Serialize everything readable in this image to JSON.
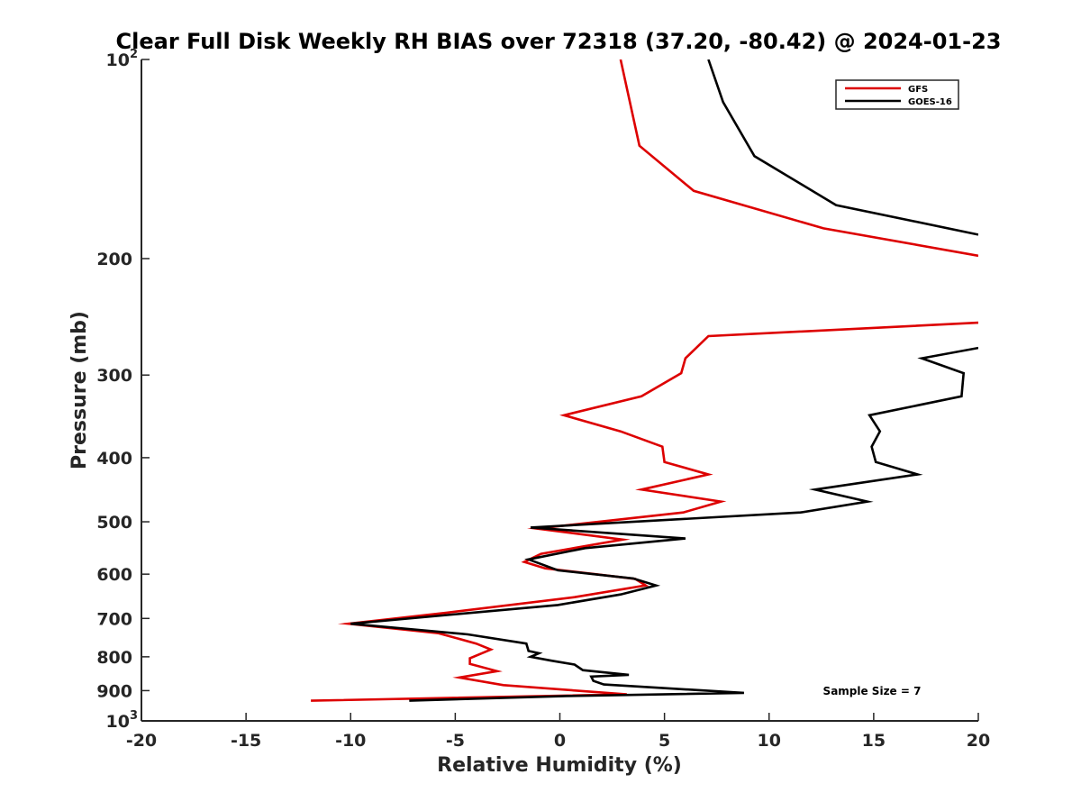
{
  "chart_data": {
    "type": "line",
    "title": "Clear Full Disk Weekly RH BIAS over 72318 (37.20, -80.42) @ 2024-01-23",
    "xlabel": "Relative Humidity (%)",
    "ylabel": "Pressure (mb)",
    "xlim": [
      -20,
      20
    ],
    "ylim": [
      100,
      1000
    ],
    "yscale": "log",
    "y_reversed": true,
    "xticks": [
      "-20",
      "-15",
      "-10",
      "-5",
      "0",
      "5",
      "10",
      "15",
      "20"
    ],
    "yticks": [
      {
        "value": 100,
        "label": "10",
        "sup": "2"
      },
      {
        "value": 200,
        "label": "200"
      },
      {
        "value": 300,
        "label": "300"
      },
      {
        "value": 400,
        "label": "400"
      },
      {
        "value": 500,
        "label": "500"
      },
      {
        "value": 600,
        "label": "600"
      },
      {
        "value": 700,
        "label": "700"
      },
      {
        "value": 800,
        "label": "800"
      },
      {
        "value": 900,
        "label": "900"
      },
      {
        "value": 1000,
        "label": "10",
        "sup": "3"
      }
    ],
    "grid": false,
    "legend_position": "top-right",
    "annotation": "Sample Size = 7",
    "series": [
      {
        "name": "GFS",
        "color": "#dd0000",
        "segments": [
          [
            [
              2.9,
              100
            ],
            [
              3.8,
              135
            ],
            [
              6.4,
              158
            ],
            [
              12.6,
              180
            ],
            [
              20,
              198
            ]
          ],
          [
            [
              20,
              250
            ],
            [
              7.1,
              262
            ],
            [
              6.0,
              283
            ],
            [
              5.8,
              298
            ],
            [
              3.9,
              323
            ],
            [
              0.2,
              345
            ],
            [
              2.9,
              365
            ],
            [
              4.9,
              385
            ],
            [
              5.0,
              406
            ],
            [
              7.1,
              424
            ],
            [
              3.9,
              447
            ],
            [
              7.7,
              466
            ],
            [
              5.9,
              484
            ],
            [
              -1.1,
              512
            ],
            [
              3.0,
              532
            ],
            [
              -0.9,
              559
            ],
            [
              -1.7,
              575
            ],
            [
              -0.7,
              588
            ],
            [
              1.7,
              600
            ],
            [
              3.6,
              610
            ],
            [
              4.1,
              624
            ],
            [
              0.7,
              650
            ],
            [
              -5.4,
              686
            ],
            [
              -10.1,
              713
            ],
            [
              -5.8,
              737
            ],
            [
              -4.0,
              764
            ],
            [
              -3.3,
              780
            ],
            [
              -4.3,
              804
            ],
            [
              -4.3,
              820
            ],
            [
              -3.0,
              841
            ],
            [
              -4.8,
              860
            ],
            [
              -2.7,
              883
            ],
            [
              3.2,
              912
            ],
            [
              -11.9,
              932
            ]
          ]
        ]
      },
      {
        "name": "GOES-16",
        "color": "#000000",
        "segments": [
          [
            [
              7.1,
              100
            ],
            [
              7.8,
              116
            ],
            [
              9.3,
              140
            ],
            [
              13.2,
              166
            ],
            [
              20,
              184
            ]
          ],
          [
            [
              20,
              273
            ],
            [
              17.3,
              283
            ],
            [
              19.3,
              298
            ],
            [
              19.2,
              323
            ],
            [
              14.8,
              345
            ],
            [
              15.3,
              365
            ],
            [
              14.9,
              385
            ],
            [
              15.1,
              406
            ],
            [
              17.1,
              424
            ],
            [
              12.2,
              447
            ],
            [
              14.7,
              466
            ],
            [
              11.5,
              484
            ],
            [
              -1.4,
              510
            ],
            [
              6.0,
              530
            ],
            [
              1.2,
              548
            ],
            [
              -1.5,
              570
            ],
            [
              -0.1,
              592
            ],
            [
              3.5,
              609
            ],
            [
              4.6,
              624
            ],
            [
              2.9,
              644
            ],
            [
              -0.1,
              668
            ],
            [
              -10.0,
              713
            ],
            [
              -4.4,
              740
            ],
            [
              -1.6,
              764
            ],
            [
              -1.5,
              784
            ],
            [
              -1.0,
              790
            ],
            [
              -1.4,
              800
            ],
            [
              -0.4,
              811
            ],
            [
              0.7,
              822
            ],
            [
              1.1,
              838
            ],
            [
              3.3,
              852
            ],
            [
              1.5,
              857
            ],
            [
              1.6,
              870
            ],
            [
              2.1,
              881
            ],
            [
              8.8,
              907
            ],
            [
              0.3,
              917
            ],
            [
              -7.2,
              932
            ]
          ]
        ]
      }
    ]
  }
}
